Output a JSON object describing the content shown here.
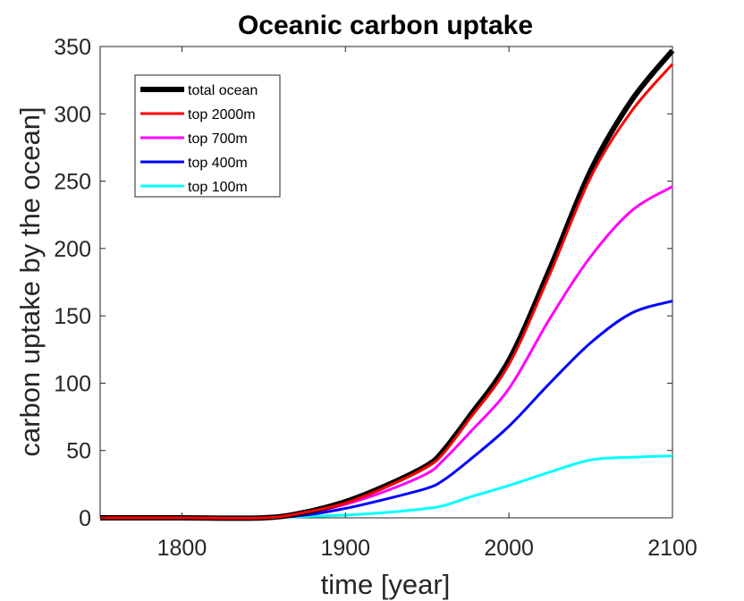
{
  "chart_data": {
    "type": "line",
    "title": "Oceanic carbon uptake",
    "xlabel": "time [year]",
    "ylabel": "carbon uptake by the ocean]",
    "xlim": [
      1750,
      2100
    ],
    "ylim": [
      0,
      350
    ],
    "xticks": [
      1800,
      1900,
      2000,
      2100
    ],
    "yticks": [
      0,
      50,
      100,
      150,
      200,
      250,
      300,
      350
    ],
    "grid": false,
    "legend_position": "top-left",
    "x": [
      1750,
      1800,
      1850,
      1875,
      1900,
      1925,
      1950,
      1960,
      1975,
      2000,
      2025,
      2050,
      2075,
      2100
    ],
    "series": [
      {
        "name": "total ocean",
        "color": "#000000",
        "values": [
          0,
          0,
          0,
          4,
          12,
          24,
          39,
          50,
          74,
          117,
          185,
          258,
          310,
          347
        ]
      },
      {
        "name": "top 2000m",
        "color": "#ff0000",
        "values": [
          0,
          0,
          0,
          4,
          11,
          23,
          38,
          48,
          72,
          114,
          181,
          253,
          302,
          337
        ]
      },
      {
        "name": "top 700m",
        "color": "#ff00ff",
        "values": [
          0,
          0,
          0,
          3,
          10,
          20,
          33,
          43,
          62,
          96,
          148,
          194,
          228,
          246
        ]
      },
      {
        "name": "top 400m",
        "color": "#0000ff",
        "values": [
          0,
          0,
          0,
          2,
          7,
          14,
          22,
          28,
          42,
          68,
          100,
          130,
          152,
          161
        ]
      },
      {
        "name": "top 100m",
        "color": "#00ffff",
        "values": [
          0,
          0,
          0,
          1,
          2,
          4,
          7,
          9,
          15,
          24,
          34,
          43,
          45,
          46
        ]
      }
    ]
  }
}
